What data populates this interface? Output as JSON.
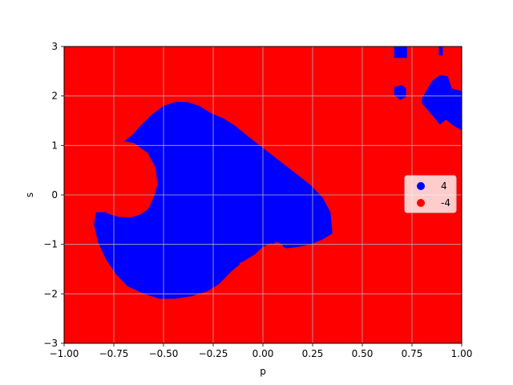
{
  "chart_data": {
    "type": "scatter",
    "title": "",
    "xlabel": "p",
    "ylabel": "s",
    "xlim": [
      -1.0,
      1.0
    ],
    "ylim": [
      -3,
      3
    ],
    "grid": true,
    "legend_placement": "center-right",
    "xticks": [
      {
        "value": -1.0,
        "label": "−1.00"
      },
      {
        "value": -0.75,
        "label": "−0.75"
      },
      {
        "value": -0.5,
        "label": "−0.50"
      },
      {
        "value": -0.25,
        "label": "−0.25"
      },
      {
        "value": 0.0,
        "label": "0.00"
      },
      {
        "value": 0.25,
        "label": "0.25"
      },
      {
        "value": 0.5,
        "label": "0.50"
      },
      {
        "value": 0.75,
        "label": "0.75"
      },
      {
        "value": 1.0,
        "label": "1.00"
      }
    ],
    "yticks": [
      {
        "value": -3,
        "label": "−3"
      },
      {
        "value": -2,
        "label": "−2"
      },
      {
        "value": -1,
        "label": "−1"
      },
      {
        "value": 0,
        "label": "0"
      },
      {
        "value": 1,
        "label": "1"
      },
      {
        "value": 2,
        "label": "2"
      },
      {
        "value": 3,
        "label": "3"
      }
    ],
    "series": [
      {
        "name": "4",
        "color": "#0000ff"
      },
      {
        "name": "-4",
        "color": "#ff0000"
      }
    ],
    "background_class": "-4",
    "regions": [
      {
        "class": "4",
        "polygon": [
          [
            -0.84,
            -0.35
          ],
          [
            -0.78,
            -0.35
          ],
          [
            -0.74,
            -0.4
          ],
          [
            -0.7,
            -0.45
          ],
          [
            -0.66,
            -0.45
          ],
          [
            -0.62,
            -0.4
          ],
          [
            -0.58,
            -0.3
          ],
          [
            -0.56,
            -0.15
          ],
          [
            -0.54,
            0.05
          ],
          [
            -0.55,
            0.3
          ],
          [
            -0.58,
            0.55
          ],
          [
            -0.62,
            0.78
          ],
          [
            -0.66,
            0.92
          ],
          [
            -0.7,
            1.08
          ],
          [
            -0.66,
            1.2
          ],
          [
            -0.62,
            1.38
          ],
          [
            -0.56,
            1.62
          ],
          [
            -0.5,
            1.8
          ],
          [
            -0.44,
            1.88
          ],
          [
            -0.38,
            1.88
          ],
          [
            -0.32,
            1.8
          ],
          [
            -0.26,
            1.65
          ],
          [
            -0.2,
            1.55
          ],
          [
            -0.14,
            1.4
          ],
          [
            -0.08,
            1.2
          ],
          [
            0.0,
            0.95
          ],
          [
            0.08,
            0.7
          ],
          [
            0.16,
            0.45
          ],
          [
            0.24,
            0.2
          ],
          [
            0.3,
            -0.05
          ],
          [
            0.34,
            -0.35
          ],
          [
            0.35,
            -0.78
          ],
          [
            0.3,
            -0.9
          ],
          [
            0.24,
            -1.0
          ],
          [
            0.18,
            -1.05
          ],
          [
            0.12,
            -1.08
          ],
          [
            0.08,
            -1.02
          ],
          [
            0.04,
            -0.98
          ],
          [
            0.0,
            -1.05
          ],
          [
            -0.04,
            -1.2
          ],
          [
            -0.1,
            -1.35
          ],
          [
            -0.16,
            -1.55
          ],
          [
            -0.22,
            -1.8
          ],
          [
            -0.28,
            -1.95
          ],
          [
            -0.36,
            -2.05
          ],
          [
            -0.44,
            -2.1
          ],
          [
            -0.52,
            -2.1
          ],
          [
            -0.6,
            -2.0
          ],
          [
            -0.68,
            -1.85
          ],
          [
            -0.74,
            -1.6
          ],
          [
            -0.79,
            -1.3
          ],
          [
            -0.83,
            -0.95
          ],
          [
            -0.85,
            -0.6
          ]
        ]
      },
      {
        "class": "-4",
        "polygon": [
          [
            -0.72,
            1.1
          ],
          [
            -0.65,
            1.05
          ],
          [
            -0.58,
            0.85
          ],
          [
            -0.54,
            0.55
          ],
          [
            -0.53,
            0.2
          ],
          [
            -0.56,
            -0.1
          ],
          [
            -0.6,
            -0.3
          ],
          [
            -0.66,
            -0.42
          ],
          [
            -0.72,
            -0.45
          ],
          [
            -0.78,
            -0.38
          ],
          [
            -0.83,
            -0.2
          ],
          [
            -0.86,
            0.1
          ],
          [
            -0.85,
            0.45
          ],
          [
            -0.82,
            0.75
          ],
          [
            -0.78,
            0.98
          ]
        ]
      },
      {
        "class": "-4",
        "polygon": [
          [
            -0.12,
            -1.38
          ],
          [
            -0.06,
            -1.28
          ],
          [
            0.0,
            -1.18
          ],
          [
            0.04,
            -1.02
          ],
          [
            0.07,
            -0.95
          ],
          [
            0.1,
            -1.0
          ],
          [
            0.1,
            -1.12
          ],
          [
            0.07,
            -1.28
          ],
          [
            0.02,
            -1.38
          ],
          [
            -0.04,
            -1.45
          ],
          [
            -0.1,
            -1.46
          ]
        ]
      },
      {
        "class": "4",
        "polygon": [
          [
            0.8,
            1.95
          ],
          [
            0.85,
            2.3
          ],
          [
            0.89,
            2.42
          ],
          [
            0.93,
            2.4
          ],
          [
            0.95,
            2.15
          ],
          [
            1.0,
            2.1
          ],
          [
            1.0,
            1.3
          ],
          [
            0.96,
            1.4
          ],
          [
            0.92,
            1.52
          ],
          [
            0.89,
            1.42
          ],
          [
            0.85,
            1.62
          ],
          [
            0.8,
            1.85
          ]
        ]
      },
      {
        "class": "4",
        "polygon": [
          [
            0.66,
            2.02
          ],
          [
            0.66,
            2.18
          ],
          [
            0.7,
            2.22
          ],
          [
            0.72,
            2.15
          ],
          [
            0.72,
            1.98
          ],
          [
            0.69,
            1.92
          ]
        ]
      },
      {
        "class": "4",
        "polygon": [
          [
            0.66,
            2.77
          ],
          [
            0.66,
            3.0
          ],
          [
            0.725,
            3.0
          ],
          [
            0.725,
            2.77
          ]
        ]
      },
      {
        "class": "4",
        "polygon": [
          [
            0.885,
            2.82
          ],
          [
            0.885,
            3.0
          ],
          [
            0.905,
            3.0
          ],
          [
            0.905,
            2.82
          ]
        ]
      }
    ]
  }
}
